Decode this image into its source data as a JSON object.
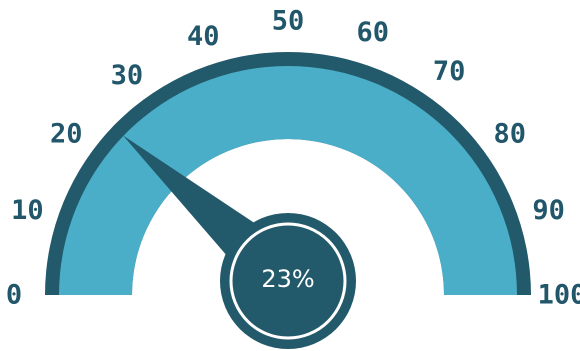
{
  "chart_data": {
    "type": "gauge",
    "value": 23,
    "value_label": "23%",
    "min": 0,
    "max": 100,
    "ticks": [
      0,
      10,
      20,
      30,
      40,
      50,
      60,
      70,
      80,
      90,
      100
    ],
    "tick_labels": [
      "0",
      "10",
      "20",
      "30",
      "40",
      "50",
      "60",
      "70",
      "80",
      "90",
      "100"
    ],
    "colors": {
      "band_outer": "#22596b",
      "band_inner": "#4aaec8",
      "needle": "#22596b",
      "hub": "#22596b",
      "hub_ring": "#ffffff",
      "labels": "#22566a"
    }
  }
}
